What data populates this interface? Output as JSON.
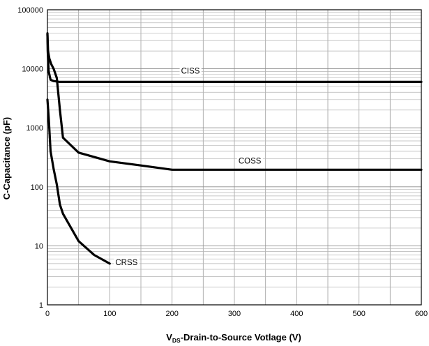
{
  "chart_data": {
    "type": "line",
    "xlabel": "VDS-Drain-to-Source Votlage (V)",
    "xlabel_parts": {
      "prefix": "V",
      "subscript": "DS",
      "rest": "-Drain-to-Source Votlage (V)"
    },
    "ylabel": "C-Capacitance (pF)",
    "xlim": [
      0,
      600
    ],
    "ylim": [
      1,
      100000
    ],
    "yscale": "log",
    "grid": true,
    "x_ticks": [
      "0",
      "100",
      "200",
      "300",
      "400",
      "500",
      "600"
    ],
    "y_ticks": [
      "1",
      "10",
      "100",
      "1000",
      "10000",
      "100000"
    ],
    "series": [
      {
        "name": "CISS",
        "x": [
          0,
          0.5,
          2,
          5,
          10,
          15,
          20,
          25,
          50,
          100,
          200,
          300,
          400,
          500,
          600
        ],
        "y": [
          40000,
          20000,
          9000,
          6500,
          6200,
          6100,
          6000,
          6000,
          6000,
          6000,
          6000,
          6000,
          6000,
          6000,
          6000
        ]
      },
      {
        "name": "COSS",
        "x": [
          0,
          1,
          3,
          6,
          10,
          15,
          20,
          25,
          50,
          100,
          150,
          200,
          300,
          400,
          500,
          600
        ],
        "y": [
          38000,
          20000,
          15000,
          12000,
          10000,
          7000,
          2000,
          680,
          380,
          270,
          230,
          195,
          195,
          195,
          195,
          195
        ]
      },
      {
        "name": "CRSS",
        "x": [
          0,
          2,
          5,
          10,
          15,
          20,
          25,
          50,
          75,
          100
        ],
        "y": [
          3000,
          1500,
          400,
          200,
          110,
          50,
          35,
          12,
          7,
          5
        ]
      }
    ]
  }
}
